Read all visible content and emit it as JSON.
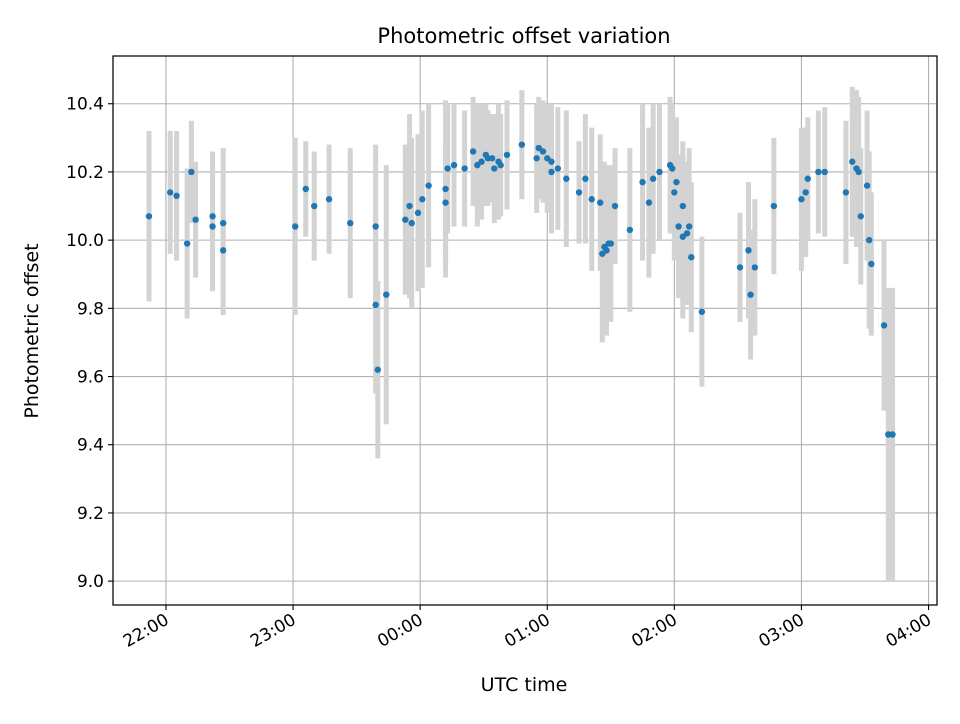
{
  "chart_data": {
    "type": "scatter",
    "title": "Photometric offset variation",
    "xlabel": "UTC time",
    "ylabel": "Photometric offset",
    "x_unit": "UTC time (HH:MM)",
    "xlim": [
      "21:35",
      "04:04"
    ],
    "ylim": [
      8.93,
      10.54
    ],
    "x_ticks": [
      "22:00",
      "23:00",
      "00:00",
      "01:00",
      "02:00",
      "03:00",
      "04:00"
    ],
    "y_ticks": [
      "9.0",
      "9.2",
      "9.4",
      "9.6",
      "9.8",
      "10.0",
      "10.2",
      "10.4"
    ],
    "grid": true,
    "colors": {
      "point": "#1f77b4",
      "errorbar": "#d3d3d3",
      "grid": "#b0b0b0"
    },
    "series": [
      {
        "x": [
          "21:52",
          "22:02",
          "22:05",
          "22:10",
          "22:12",
          "22:14",
          "22:22",
          "22:22",
          "22:27",
          "22:27",
          "23:01",
          "23:06",
          "23:10",
          "23:17",
          "23:27",
          "23:39",
          "23:39",
          "23:40",
          "23:44",
          "23:53",
          "23:55",
          "23:56",
          "23:59",
          "00:01",
          "00:04",
          "00:12",
          "00:12",
          "00:13",
          "00:16",
          "00:21",
          "00:25",
          "00:27",
          "00:29",
          "00:31",
          "00:32",
          "00:34",
          "00:35",
          "00:37",
          "00:38",
          "00:41",
          "00:48",
          "00:55",
          "00:56",
          "00:58",
          "01:00",
          "01:02",
          "01:02",
          "01:05",
          "01:09",
          "01:15",
          "01:18",
          "01:21",
          "01:25",
          "01:26",
          "01:27",
          "01:28",
          "01:29",
          "01:30",
          "01:32",
          "01:39",
          "01:45",
          "01:48",
          "01:50",
          "01:53",
          "01:58",
          "01:59",
          "02:00",
          "02:01",
          "02:02",
          "02:04",
          "02:04",
          "02:06",
          "02:07",
          "02:08",
          "02:13",
          "02:31",
          "02:35",
          "02:36",
          "02:38",
          "02:47",
          "03:00",
          "03:02",
          "03:03",
          "03:08",
          "03:11",
          "03:21",
          "03:24",
          "03:26",
          "03:27",
          "03:28",
          "03:31",
          "03:32",
          "03:33",
          "03:39",
          "03:41",
          "03:43"
        ],
        "y": [
          10.07,
          10.14,
          10.13,
          9.99,
          10.2,
          10.06,
          10.07,
          10.04,
          9.97,
          10.05,
          10.04,
          10.15,
          10.1,
          10.12,
          10.05,
          10.04,
          9.81,
          9.62,
          9.84,
          10.06,
          10.1,
          10.05,
          10.08,
          10.12,
          10.16,
          10.11,
          10.15,
          10.21,
          10.22,
          10.21,
          10.26,
          10.22,
          10.23,
          10.25,
          10.24,
          10.24,
          10.21,
          10.23,
          10.22,
          10.25,
          10.28,
          10.24,
          10.27,
          10.26,
          10.24,
          10.23,
          10.2,
          10.21,
          10.18,
          10.14,
          10.18,
          10.12,
          10.11,
          9.96,
          9.98,
          9.97,
          9.99,
          9.99,
          10.1,
          10.03,
          10.17,
          10.11,
          10.18,
          10.2,
          10.22,
          10.21,
          10.14,
          10.17,
          10.04,
          10.01,
          10.1,
          10.02,
          10.04,
          9.95,
          9.79,
          9.92,
          9.97,
          9.84,
          9.92,
          10.1,
          10.12,
          10.14,
          10.18,
          10.2,
          10.2,
          10.14,
          10.23,
          10.21,
          10.2,
          10.07,
          10.16,
          10.0,
          9.93,
          9.75,
          9.43,
          9.43
        ],
        "yerr": [
          0.25,
          0.18,
          0.19,
          0.22,
          0.15,
          0.17,
          0.19,
          0.19,
          0.19,
          0.22,
          0.26,
          0.14,
          0.16,
          0.16,
          0.22,
          0.24,
          0.26,
          0.26,
          0.38,
          0.22,
          0.27,
          0.25,
          0.23,
          0.26,
          0.24,
          0.17,
          0.26,
          0.19,
          0.18,
          0.17,
          0.16,
          0.18,
          0.17,
          0.15,
          0.14,
          0.13,
          0.16,
          0.17,
          0.15,
          0.16,
          0.16,
          0.16,
          0.15,
          0.15,
          0.16,
          0.17,
          0.18,
          0.18,
          0.2,
          0.15,
          0.19,
          0.21,
          0.2,
          0.26,
          0.25,
          0.25,
          0.22,
          0.23,
          0.17,
          0.24,
          0.23,
          0.22,
          0.22,
          0.2,
          0.2,
          0.19,
          0.2,
          0.19,
          0.21,
          0.24,
          0.19,
          0.21,
          0.23,
          0.22,
          0.22,
          0.16,
          0.2,
          0.19,
          0.2,
          0.2,
          0.21,
          0.19,
          0.18,
          0.18,
          0.19,
          0.21,
          0.22,
          0.23,
          0.22,
          0.2,
          0.22,
          0.26,
          0.21,
          0.25,
          0.43,
          0.43
        ]
      }
    ]
  }
}
